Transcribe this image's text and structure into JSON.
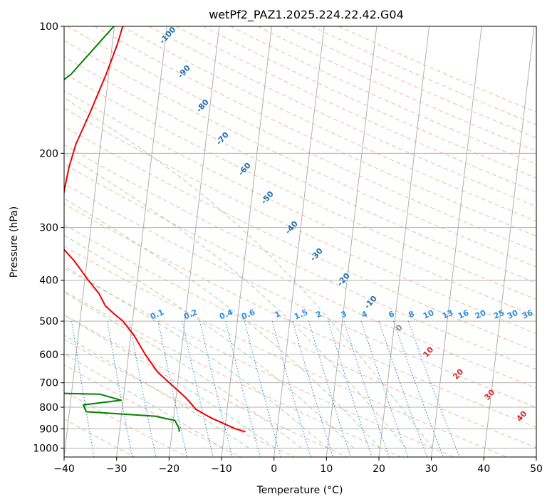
{
  "chart_data": {
    "type": "line",
    "title": "wetPf2_PAZ1.2025.224.22.42.G04",
    "xlabel": "Temperature (°C)",
    "ylabel": "Pressure (hPa)",
    "xlim": [
      -40,
      50
    ],
    "ylim": [
      1050,
      100
    ],
    "y_scale": "log",
    "x_ticks": [
      "−40",
      "−30",
      "−20",
      "−10",
      "0",
      "10",
      "20",
      "30",
      "40",
      "50"
    ],
    "y_ticks": [
      "100",
      "200",
      "300",
      "400",
      "500",
      "600",
      "700",
      "800",
      "900",
      "1000"
    ],
    "series": [
      {
        "role": "temperature",
        "color": "#ee0000",
        "points": [
          [
            -38.4,
            100
          ],
          [
            -39.0,
            110
          ],
          [
            -40.5,
            130
          ],
          [
            -42.7,
            160
          ],
          [
            -44.7,
            190
          ],
          [
            -45.5,
            215
          ],
          [
            -45.9,
            245
          ],
          [
            -46.0,
            270
          ],
          [
            -45.6,
            300
          ],
          [
            -45.5,
            330
          ],
          [
            -42.4,
            360
          ],
          [
            -39.3,
            400
          ],
          [
            -37.0,
            430
          ],
          [
            -35.5,
            460
          ],
          [
            -33.7,
            480
          ],
          [
            -31.8,
            500
          ],
          [
            -29.4,
            540
          ],
          [
            -26.8,
            600
          ],
          [
            -24.1,
            660
          ],
          [
            -21.0,
            710
          ],
          [
            -18.1,
            760
          ],
          [
            -15.9,
            810
          ],
          [
            -12.7,
            850
          ],
          [
            -8.0,
            900
          ],
          [
            -6.0,
            915
          ]
        ]
      },
      {
        "role": "dewpoint",
        "color": "#008000",
        "points": [
          [
            -40.1,
            100
          ],
          [
            -47.2,
            130
          ],
          [
            -56.0,
            160
          ],
          [
            -63.1,
            200
          ],
          [
            -69.8,
            230
          ],
          [
            -82.9,
            280
          ],
          [
            -86.3,
            295
          ],
          [
            -89.6,
            320
          ],
          [
            -92.1,
            338
          ],
          [
            -94.7,
            348
          ],
          [
            -95.9,
            375
          ],
          [
            -98.8,
            398
          ],
          [
            -99.9,
            415
          ],
          [
            -103.0,
            488
          ],
          [
            -103.2,
            510
          ],
          [
            -103.6,
            545
          ],
          [
            -104.0,
            575
          ],
          [
            -104.9,
            620
          ],
          [
            -105.7,
            665
          ],
          [
            -107.0,
            690
          ],
          [
            -90.0,
            720
          ],
          [
            -34.6,
            745
          ],
          [
            -30.4,
            770
          ],
          [
            -37.5,
            790
          ],
          [
            -36.8,
            820
          ],
          [
            -23.6,
            840
          ],
          [
            -19.7,
            860
          ],
          [
            -18.8,
            895
          ],
          [
            -18.6,
            915
          ]
        ]
      }
    ],
    "mixing_ratio_labels": [
      "0.1",
      "0.2",
      "0.4",
      "0.6",
      "1",
      "1.5",
      "2",
      "3",
      "4",
      "6",
      "8",
      "10",
      "13",
      "16",
      "20",
      "25",
      "30",
      "36"
    ],
    "dry_adiabat_labels": [
      "-100",
      "-90",
      "-80",
      "-70",
      "-60",
      "-50",
      "-40",
      "-30",
      "-20",
      "-10",
      "0",
      "10",
      "20",
      "30",
      "40"
    ],
    "colors": {
      "temperature": "#ee0000",
      "dewpoint": "#008000",
      "grid": "#b0b0b0",
      "dry_adiabat": "#f4a582",
      "moist_adiabat": "#8fc98f",
      "mixing_ratio": "#2b8ce6",
      "label_blue": "#2b8ce6",
      "label_cold": "#1f6fb2",
      "label_warm": "#d62728",
      "label_zero": "#888888"
    }
  }
}
